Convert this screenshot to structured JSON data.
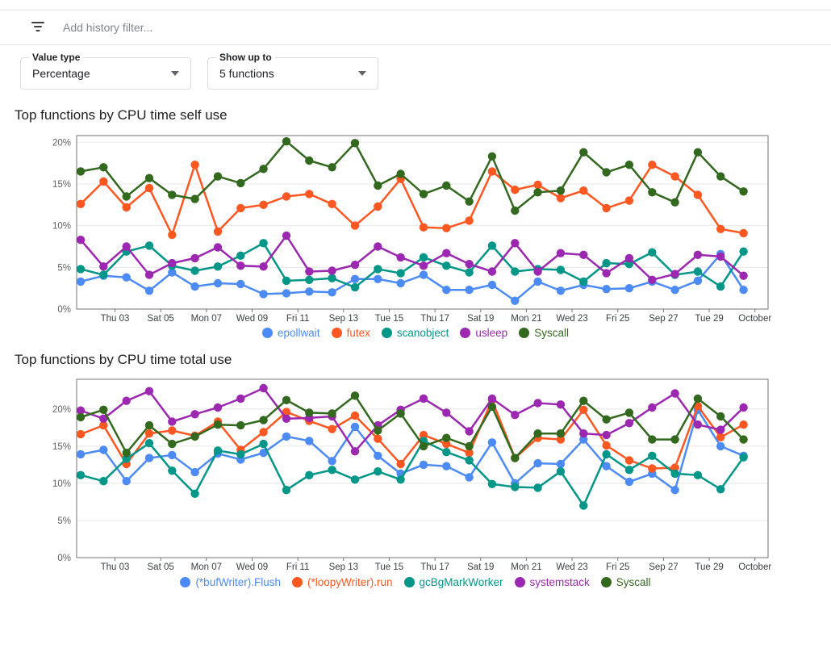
{
  "filter_bar": {
    "icon": "filter-list-icon",
    "placeholder": "Add history filter..."
  },
  "controls": [
    {
      "label": "Value type",
      "value": "Percentage",
      "icon": "dropdown-caret-icon"
    },
    {
      "label": "Show up to",
      "value": "5 functions",
      "icon": "dropdown-caret-icon"
    }
  ],
  "charts": [
    {
      "title": "Top functions by CPU time self use",
      "chart_data": {
        "type": "line",
        "y_unit": "%",
        "ylim": [
          0,
          20.8
        ],
        "yticks": [
          0,
          5,
          10,
          15,
          20
        ],
        "ytick_labels": [
          "0%",
          "5%",
          "10%",
          "15%",
          "20%"
        ],
        "grid": true,
        "legend_position": "bottom",
        "x_tick_labels": [
          "Thu 03",
          "Sat 05",
          "Mon 07",
          "Wed 09",
          "Fri 11",
          "Sep 13",
          "Tue 15",
          "Thu 17",
          "Sat 19",
          "Mon 21",
          "Wed 23",
          "Fri 25",
          "Sep 27",
          "Tue 29",
          "October"
        ],
        "series": [
          {
            "name": "epollwait",
            "color": "#4c8bf5",
            "values": [
              3.3,
              4.0,
              3.8,
              2.2,
              4.4,
              2.7,
              3.1,
              3.0,
              1.8,
              1.9,
              2.1,
              2.0,
              3.6,
              3.6,
              3.1,
              4.1,
              2.3,
              2.3,
              2.9,
              1.0,
              3.3,
              2.2,
              2.9,
              2.4,
              2.5,
              3.3,
              2.3,
              3.4,
              6.6,
              2.3
            ]
          },
          {
            "name": "futex",
            "color": "#ff5722",
            "values": [
              12.6,
              15.3,
              12.2,
              14.5,
              8.9,
              17.3,
              9.3,
              12.1,
              12.5,
              13.5,
              13.8,
              12.6,
              10.0,
              12.3,
              15.6,
              9.8,
              9.7,
              10.6,
              16.5,
              14.3,
              14.9,
              13.3,
              14.2,
              12.1,
              13.0,
              17.3,
              15.9,
              13.7,
              9.6,
              9.1
            ]
          },
          {
            "name": "scanobject",
            "color": "#009688",
            "values": [
              4.8,
              4.1,
              6.9,
              7.6,
              5.2,
              4.6,
              5.1,
              6.4,
              7.9,
              3.4,
              3.5,
              3.7,
              2.6,
              4.8,
              4.3,
              6.2,
              5.2,
              4.4,
              7.6,
              4.5,
              4.8,
              4.7,
              3.3,
              5.5,
              5.4,
              6.8,
              4.1,
              4.5,
              2.7,
              6.9
            ]
          },
          {
            "name": "usleep",
            "color": "#9c27b0",
            "values": [
              8.3,
              5.1,
              7.5,
              4.1,
              5.5,
              6.1,
              7.4,
              5.2,
              5.1,
              8.8,
              4.5,
              4.6,
              5.3,
              7.5,
              6.2,
              5.2,
              6.7,
              5.4,
              4.5,
              7.9,
              4.5,
              6.7,
              6.5,
              4.3,
              6.1,
              3.5,
              4.2,
              6.5,
              6.3,
              4.0
            ]
          },
          {
            "name": "Syscall",
            "color": "#33691e",
            "values": [
              16.5,
              17.0,
              13.5,
              15.7,
              13.7,
              13.2,
              15.9,
              15.1,
              16.8,
              20.1,
              17.8,
              17.0,
              19.9,
              14.8,
              16.2,
              13.8,
              14.8,
              12.9,
              18.3,
              11.8,
              14.0,
              14.2,
              18.8,
              16.4,
              17.3,
              14.0,
              12.8,
              18.8,
              15.9,
              14.1
            ]
          }
        ]
      }
    },
    {
      "title": "Top functions by CPU time total use",
      "chart_data": {
        "type": "line",
        "y_unit": "%",
        "ylim": [
          0,
          24
        ],
        "yticks": [
          0,
          5,
          10,
          15,
          20
        ],
        "ytick_labels": [
          "0%",
          "5%",
          "10%",
          "15%",
          "20%"
        ],
        "grid": true,
        "legend_position": "bottom",
        "x_tick_labels": [
          "Thu 03",
          "Sat 05",
          "Mon 07",
          "Wed 09",
          "Fri 11",
          "Sep 13",
          "Tue 15",
          "Thu 17",
          "Sat 19",
          "Mon 21",
          "Wed 23",
          "Fri 25",
          "Sep 27",
          "Tue 29",
          "October"
        ],
        "series": [
          {
            "name": "(*bufWriter).Flush",
            "color": "#4c8bf5",
            "values": [
              13.9,
              14.5,
              10.3,
              13.4,
              13.8,
              11.5,
              14.0,
              13.2,
              14.1,
              16.3,
              15.7,
              13.0,
              17.6,
              13.7,
              11.3,
              12.5,
              12.3,
              10.8,
              15.5,
              10.0,
              12.7,
              12.6,
              15.9,
              12.3,
              10.2,
              11.3,
              9.1,
              19.9,
              15.0,
              13.7
            ]
          },
          {
            "name": "(*loopyWriter).run",
            "color": "#ff5722",
            "values": [
              16.6,
              17.8,
              12.6,
              16.7,
              17.1,
              16.4,
              18.3,
              14.5,
              16.9,
              19.6,
              18.4,
              17.3,
              19.1,
              16.0,
              12.6,
              16.5,
              15.3,
              14.1,
              21.2,
              13.4,
              16.1,
              15.9,
              19.9,
              15.1,
              13.1,
              12.0,
              12.1,
              20.4,
              16.2,
              17.9
            ]
          },
          {
            "name": "gcBgMarkWorker",
            "color": "#009688",
            "values": [
              11.1,
              10.3,
              13.3,
              15.4,
              11.7,
              8.6,
              14.4,
              13.9,
              15.3,
              9.1,
              11.1,
              11.8,
              10.5,
              11.6,
              10.5,
              15.7,
              14.2,
              13.1,
              9.9,
              9.5,
              9.4,
              11.6,
              7.0,
              13.9,
              11.8,
              13.7,
              11.3,
              11.1,
              9.2,
              13.5
            ]
          },
          {
            "name": "systemstack",
            "color": "#9c27b0",
            "values": [
              19.8,
              18.7,
              21.1,
              22.4,
              18.3,
              19.3,
              20.2,
              21.4,
              22.8,
              18.7,
              18.8,
              19.0,
              14.3,
              17.8,
              19.9,
              21.4,
              19.5,
              17.0,
              21.4,
              19.2,
              20.8,
              20.6,
              16.7,
              16.5,
              18.1,
              20.2,
              22.1,
              17.9,
              17.2,
              20.2
            ]
          },
          {
            "name": "Syscall",
            "color": "#33691e",
            "values": [
              18.9,
              19.9,
              14.1,
              17.8,
              15.3,
              16.3,
              17.9,
              17.8,
              18.5,
              21.2,
              19.5,
              19.4,
              21.8,
              17.1,
              19.4,
              15.0,
              16.1,
              15.0,
              20.3,
              13.4,
              16.7,
              16.7,
              21.1,
              18.6,
              19.5,
              15.9,
              15.9,
              21.4,
              19.0,
              15.9
            ]
          }
        ]
      }
    }
  ],
  "style": {
    "frame_color": "#757575",
    "grid_color": "#e8e8e8",
    "ytick_color": "#616161",
    "xtick_color": "#3c4043"
  }
}
